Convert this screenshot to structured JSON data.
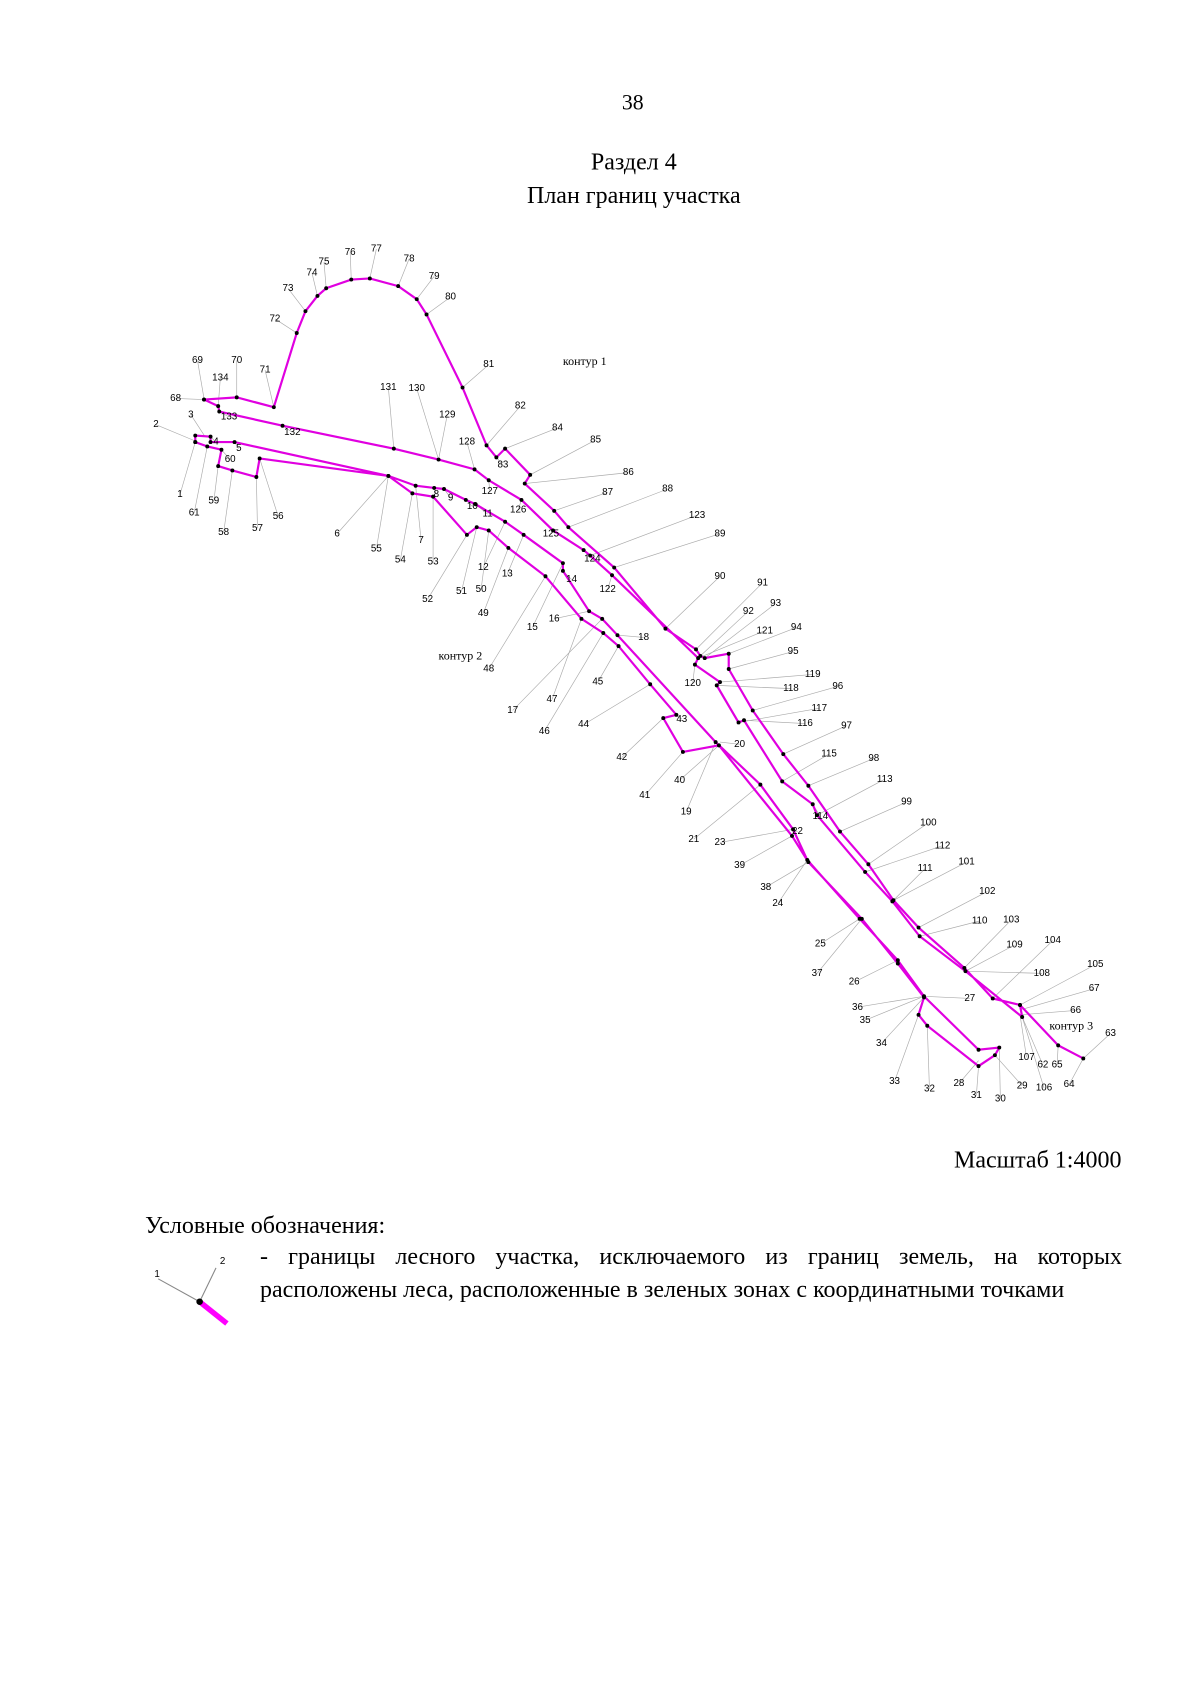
{
  "page": {
    "number": "38",
    "section": "Раздел 4",
    "title": "План границ участка"
  },
  "plan": {
    "contours": [
      "контур 1",
      "контур 2",
      "контур 3"
    ],
    "points": [
      "1",
      "2",
      "3",
      "4",
      "5",
      "6",
      "7",
      "8",
      "9",
      "10",
      "11",
      "12",
      "13",
      "14",
      "15",
      "16",
      "17",
      "18",
      "19",
      "20",
      "21",
      "22",
      "23",
      "24",
      "25",
      "26",
      "27",
      "28",
      "29",
      "30",
      "31",
      "32",
      "33",
      "34",
      "35",
      "36",
      "37",
      "38",
      "39",
      "40",
      "41",
      "42",
      "43",
      "44",
      "45",
      "46",
      "47",
      "48",
      "49",
      "50",
      "51",
      "52",
      "53",
      "54",
      "55",
      "56",
      "57",
      "58",
      "59",
      "60",
      "61",
      "62",
      "63",
      "64",
      "65",
      "66",
      "67",
      "68",
      "69",
      "70",
      "71",
      "72",
      "73",
      "74",
      "75",
      "76",
      "77",
      "78",
      "79",
      "80",
      "81",
      "82",
      "83",
      "84",
      "85",
      "86",
      "87",
      "88",
      "89",
      "90",
      "91",
      "92",
      "93",
      "94",
      "95",
      "96",
      "97",
      "98",
      "99",
      "100",
      "101",
      "102",
      "103",
      "104",
      "105",
      "106",
      "107",
      "108",
      "109",
      "110",
      "111",
      "112",
      "113",
      "114",
      "115",
      "116",
      "117",
      "118",
      "119",
      "120",
      "121",
      "122",
      "123",
      "124",
      "125",
      "126",
      "127",
      "128",
      "129",
      "130",
      "131",
      "132",
      "133",
      "134"
    ]
  },
  "scale": "Масштаб 1:4000",
  "legend": {
    "heading": "Условные обозначения:",
    "icon_labels": [
      "1",
      "2"
    ],
    "text": "- границы лесного участка, исключаемого из границ земель, на которых расположены леса, расположенные в зеленых зонах с координатными точками"
  }
}
